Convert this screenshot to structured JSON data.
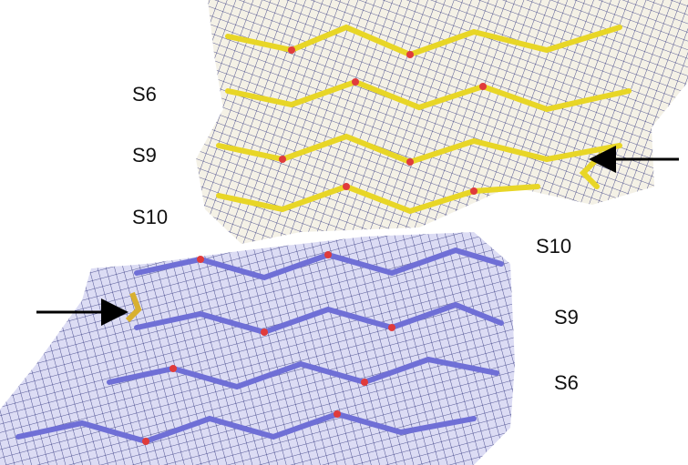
{
  "labels_top": [
    "S6",
    "S9",
    "S10"
  ],
  "labels_bottom": [
    "S10",
    "S9",
    "S6"
  ]
}
